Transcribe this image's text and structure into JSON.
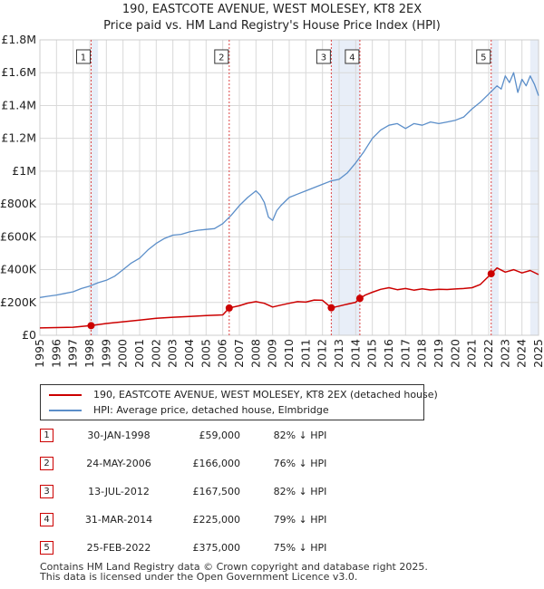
{
  "chart_data": {
    "type": "line",
    "title": "190, EASTCOTE AVENUE, WEST MOLESEY, KT8 2EX",
    "subtitle": "Price paid vs. HM Land Registry's House Price Index (HPI)",
    "xlim": [
      1995,
      2025
    ],
    "ylim": [
      0,
      1800000
    ],
    "y_ticks": [
      0,
      200000,
      400000,
      600000,
      800000,
      1000000,
      1200000,
      1400000,
      1600000,
      1800000
    ],
    "y_tick_labels": [
      "£0",
      "£200K",
      "£400K",
      "£600K",
      "£800K",
      "£1M",
      "£1.2M",
      "£1.4M",
      "£1.6M",
      "£1.8M"
    ],
    "x_tick_labels": [
      "1995",
      "1996",
      "1997",
      "1998",
      "1999",
      "2000",
      "2001",
      "2002",
      "2003",
      "2004",
      "2005",
      "2006",
      "2007",
      "2008",
      "2009",
      "2010",
      "2011",
      "2012",
      "2013",
      "2014",
      "2015",
      "2016",
      "2017",
      "2018",
      "2019",
      "2020",
      "2021",
      "2022",
      "2023",
      "2024",
      "2025"
    ],
    "grid": true,
    "colors": {
      "property": "#cc0000",
      "hpi": "#5b8ec9",
      "shade": "#e8eef8",
      "marker_line": "#dd4444"
    },
    "series": [
      {
        "name": "190, EASTCOTE AVENUE, WEST MOLESEY, KT8 2EX (detached house)",
        "color": "#cc0000",
        "x": [
          1995.0,
          1996.0,
          1997.0,
          1998.08,
          1999.0,
          2000.0,
          2001.0,
          2002.0,
          2003.0,
          2004.0,
          2005.0,
          2006.0,
          2006.39,
          2007.0,
          2007.5,
          2008.0,
          2008.5,
          2009.0,
          2009.5,
          2010.0,
          2010.5,
          2011.0,
          2011.5,
          2012.0,
          2012.53,
          2013.0,
          2013.5,
          2014.0,
          2014.25,
          2014.6,
          2015.0,
          2015.5,
          2016.0,
          2016.5,
          2017.0,
          2017.5,
          2018.0,
          2018.5,
          2019.0,
          2019.5,
          2020.0,
          2020.5,
          2021.0,
          2021.5,
          2022.15,
          2022.5,
          2023.0,
          2023.5,
          2024.0,
          2024.5,
          2025.0
        ],
        "values": [
          45000,
          47000,
          49000,
          59000,
          72000,
          82000,
          92000,
          103000,
          110000,
          115000,
          120000,
          124000,
          166000,
          180000,
          196000,
          205000,
          195000,
          172000,
          184000,
          195000,
          205000,
          202000,
          215000,
          213000,
          167500,
          178000,
          190000,
          201000,
          225000,
          246000,
          262000,
          280000,
          290000,
          278000,
          285000,
          275000,
          283000,
          276000,
          280000,
          279000,
          282000,
          285000,
          290000,
          310000,
          375000,
          410000,
          385000,
          400000,
          380000,
          395000,
          370000
        ]
      },
      {
        "name": "HPI: Average price, detached house, Elmbridge",
        "color": "#5b8ec9",
        "x": [
          1995.0,
          1995.5,
          1996.0,
          1996.5,
          1997.0,
          1997.5,
          1998.0,
          1998.5,
          1999.0,
          1999.5,
          2000.0,
          2000.5,
          2001.0,
          2001.5,
          2002.0,
          2002.5,
          2003.0,
          2003.5,
          2004.0,
          2004.5,
          2005.0,
          2005.5,
          2006.0,
          2006.5,
          2007.0,
          2007.5,
          2008.0,
          2008.25,
          2008.5,
          2008.75,
          2009.0,
          2009.25,
          2009.5,
          2010.0,
          2010.5,
          2011.0,
          2011.5,
          2012.0,
          2012.5,
          2013.0,
          2013.5,
          2014.0,
          2014.5,
          2015.0,
          2015.5,
          2016.0,
          2016.5,
          2017.0,
          2017.5,
          2018.0,
          2018.5,
          2019.0,
          2019.5,
          2020.0,
          2020.5,
          2021.0,
          2021.5,
          2022.0,
          2022.5,
          2022.75,
          2023.0,
          2023.25,
          2023.5,
          2023.75,
          2024.0,
          2024.25,
          2024.5,
          2024.75,
          2025.0
        ],
        "values": [
          230000,
          238000,
          245000,
          255000,
          265000,
          285000,
          300000,
          320000,
          335000,
          360000,
          400000,
          440000,
          470000,
          520000,
          560000,
          590000,
          610000,
          615000,
          630000,
          640000,
          645000,
          650000,
          680000,
          730000,
          790000,
          840000,
          880000,
          855000,
          810000,
          720000,
          700000,
          760000,
          790000,
          840000,
          860000,
          880000,
          900000,
          920000,
          940000,
          950000,
          990000,
          1050000,
          1120000,
          1200000,
          1250000,
          1280000,
          1290000,
          1260000,
          1290000,
          1280000,
          1300000,
          1290000,
          1300000,
          1310000,
          1330000,
          1380000,
          1420000,
          1470000,
          1520000,
          1500000,
          1580000,
          1540000,
          1600000,
          1480000,
          1560000,
          1520000,
          1580000,
          1530000,
          1460000
        ]
      }
    ],
    "transactions": [
      {
        "label": "1",
        "x": 1998.08,
        "value": 59000
      },
      {
        "label": "2",
        "x": 2006.39,
        "value": 166000
      },
      {
        "label": "3",
        "x": 2012.53,
        "value": 167500
      },
      {
        "label": "4",
        "x": 2014.25,
        "value": 225000
      },
      {
        "label": "5",
        "x": 2022.15,
        "value": 375000
      }
    ]
  },
  "legend": {
    "property": "190, EASTCOTE AVENUE, WEST MOLESEY, KT8 2EX (detached house)",
    "hpi": "HPI: Average price, detached house, Elmbridge"
  },
  "table": [
    {
      "num": "1",
      "date": "30-JAN-1998",
      "price": "£59,000",
      "hpi": "82% ↓ HPI"
    },
    {
      "num": "2",
      "date": "24-MAY-2006",
      "price": "£166,000",
      "hpi": "76% ↓ HPI"
    },
    {
      "num": "3",
      "date": "13-JUL-2012",
      "price": "£167,500",
      "hpi": "82% ↓ HPI"
    },
    {
      "num": "4",
      "date": "31-MAR-2014",
      "price": "£225,000",
      "hpi": "79% ↓ HPI"
    },
    {
      "num": "5",
      "date": "25-FEB-2022",
      "price": "£375,000",
      "hpi": "75% ↓ HPI"
    }
  ],
  "footer": {
    "line1": "Contains HM Land Registry data © Crown copyright and database right 2025.",
    "line2": "This data is licensed under the Open Government Licence v3.0."
  }
}
